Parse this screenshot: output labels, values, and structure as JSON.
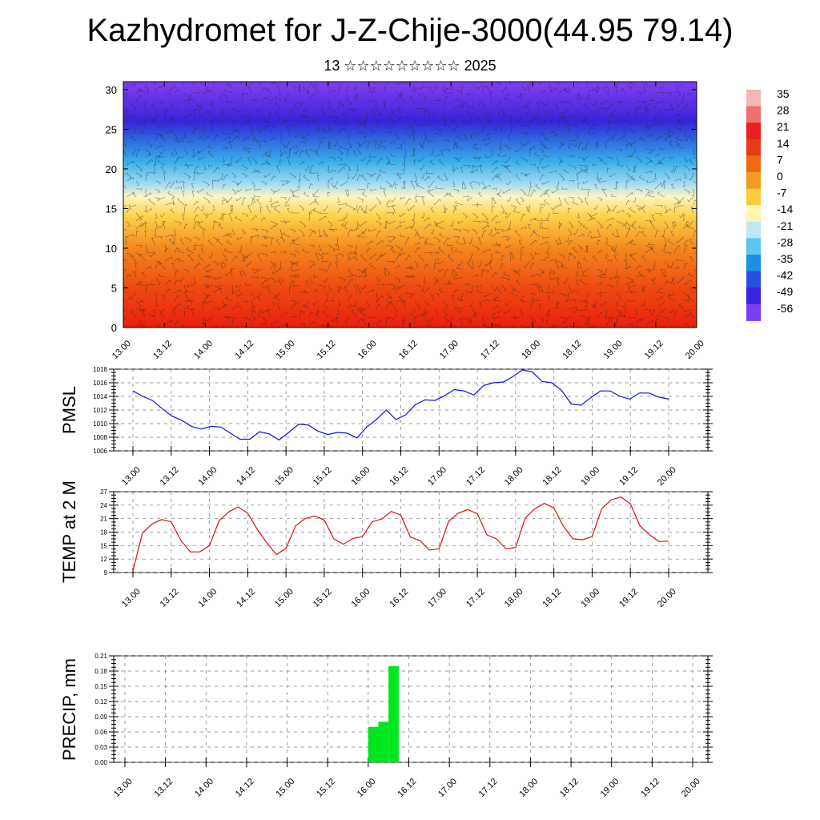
{
  "title": "Kazhydromet for J-Z-Chije-3000(44.95 79.14)",
  "subtitle": "13 ☆☆☆☆☆☆☆☆☆ 2025",
  "chart_data": [
    {
      "type": "heatmap",
      "description_source": "temperature cross-section with wind barbs",
      "x_tick_labels": [
        "13.00",
        "13.12",
        "14.00",
        "14.12",
        "15.00",
        "15.12",
        "16.00",
        "16.12",
        "17.00",
        "17.12",
        "18.00",
        "18.12",
        "19.00",
        "19.12",
        "20.00"
      ],
      "y_ticks": [
        0,
        5,
        10,
        15,
        20,
        25,
        30
      ],
      "ylim": [
        0,
        31
      ],
      "colorbar_labels": [
        "35",
        "28",
        "21",
        "14",
        "7",
        "0",
        "-7",
        "-14",
        "-21",
        "-28",
        "-35",
        "-42",
        "-49",
        "-56"
      ],
      "colorbar_colors": [
        "#f0b8b8",
        "#f07070",
        "#e82020",
        "#e83c14",
        "#f06a14",
        "#f59a22",
        "#fbcb3c",
        "#fff7b0",
        "#bfe8f6",
        "#5cc4ee",
        "#1a90e6",
        "#2a50e0",
        "#3a22e2",
        "#7a3ef0"
      ],
      "level_colors": [
        {
          "z": 0,
          "color": "#e8200f"
        },
        {
          "z": 5,
          "color": "#ee4a12"
        },
        {
          "z": 10,
          "color": "#f5871c"
        },
        {
          "z": 14,
          "color": "#fbd24a"
        },
        {
          "z": 16.5,
          "color": "#fdf5c0"
        },
        {
          "z": 18,
          "color": "#a8dcf2"
        },
        {
          "z": 21,
          "color": "#38aeea"
        },
        {
          "z": 24,
          "color": "#2f5fdc"
        },
        {
          "z": 26,
          "color": "#3a22d8"
        },
        {
          "z": 31,
          "color": "#8240f2"
        }
      ]
    },
    {
      "type": "line",
      "ylabel": "PMSL",
      "ylim": [
        1006,
        1018
      ],
      "y_ticks": [
        1006,
        1008,
        1010,
        1012,
        1014,
        1016,
        1018
      ],
      "x_tick_labels": [
        "13.00",
        "13.12",
        "14.00",
        "14.12",
        "15.00",
        "15.12",
        "16.00",
        "16.12",
        "17.00",
        "17.12",
        "18.00",
        "18.12",
        "19.00",
        "19.12",
        "20.00"
      ],
      "color": "#1010dd",
      "values": [
        1014.8,
        1014.0,
        1013.4,
        1012.2,
        1011.1,
        1010.5,
        1009.6,
        1009.2,
        1009.6,
        1009.5,
        1008.6,
        1007.7,
        1007.7,
        1008.8,
        1008.5,
        1007.6,
        1008.7,
        1009.9,
        1009.8,
        1008.9,
        1008.4,
        1008.7,
        1008.6,
        1007.9,
        1009.5,
        1010.6,
        1012.0,
        1010.6,
        1011.3,
        1012.8,
        1013.5,
        1013.4,
        1014.1,
        1015.0,
        1014.8,
        1014.2,
        1015.6,
        1016.0,
        1016.1,
        1016.9,
        1017.9,
        1017.6,
        1016.2,
        1016.0,
        1014.9,
        1012.9,
        1012.7,
        1013.8,
        1014.8,
        1014.8,
        1014.0,
        1013.6,
        1014.5,
        1014.5,
        1013.9,
        1013.6
      ]
    },
    {
      "type": "line",
      "ylabel": "TEMP at 2 M",
      "ylim": [
        9,
        27
      ],
      "y_ticks": [
        9,
        12,
        15,
        18,
        21,
        24,
        27
      ],
      "x_tick_labels": [
        "13.00",
        "13.12",
        "14.00",
        "14.12",
        "15.00",
        "15.12",
        "16.00",
        "16.12",
        "17.00",
        "17.12",
        "18.00",
        "18.12",
        "19.00",
        "19.12",
        "20.00"
      ],
      "color": "#dd1010",
      "values": [
        9.4,
        17.8,
        19.8,
        20.8,
        20.3,
        16.2,
        13.6,
        13.6,
        15.0,
        20.5,
        22.5,
        23.6,
        22.2,
        18.6,
        15.6,
        13.0,
        14.4,
        19.4,
        21.0,
        21.6,
        20.7,
        16.5,
        15.3,
        16.6,
        17.0,
        20.3,
        20.9,
        22.6,
        21.8,
        16.9,
        16.1,
        14.0,
        14.3,
        20.4,
        22.2,
        23.0,
        22.1,
        17.4,
        16.5,
        14.3,
        14.6,
        21.1,
        23.2,
        24.4,
        23.4,
        19.3,
        16.5,
        16.3,
        17.0,
        23.2,
        25.2,
        25.8,
        24.3,
        19.4,
        17.4,
        15.9,
        16.0
      ]
    },
    {
      "type": "bar",
      "ylabel": "PRECIP, mm",
      "ylim": [
        0,
        0.21
      ],
      "y_tick_labels": [
        "0.00",
        "0.03",
        "0.06",
        "0.09",
        "0.12",
        "0.15",
        "0.18",
        "0.21"
      ],
      "x_tick_labels": [
        "13.00",
        "13.12",
        "14.00",
        "14.12",
        "15.00",
        "15.12",
        "16.00",
        "16.12",
        "17.00",
        "17.12",
        "18.00",
        "18.12",
        "19.00",
        "19.12",
        "20.00"
      ],
      "color": "#00e61e",
      "bars": [
        {
          "x": "16.00",
          "value": 0.07
        },
        {
          "x": "16.03",
          "value": 0.08
        },
        {
          "x": "16.06",
          "value": 0.19
        }
      ]
    }
  ]
}
